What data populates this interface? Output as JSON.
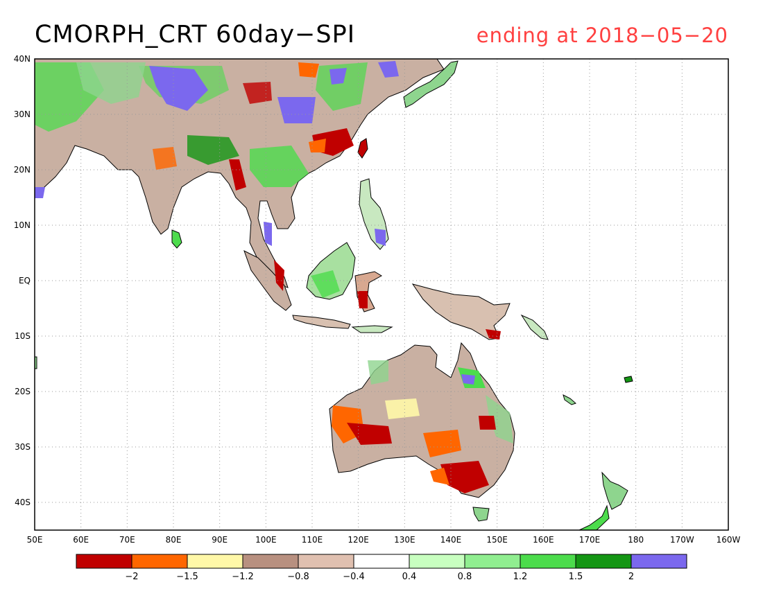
{
  "header": {
    "title": "CMORPH_CRT 60day−SPI",
    "subtitle": "ending at 2018−05−20",
    "subtitle_color": "#ff4040"
  },
  "map": {
    "lon_labels": [
      "50E",
      "60E",
      "70E",
      "80E",
      "90E",
      "100E",
      "110E",
      "120E",
      "130E",
      "140E",
      "150E",
      "160E",
      "170E",
      "180",
      "170W",
      "160W"
    ],
    "lat_labels": [
      "40N",
      "30N",
      "20N",
      "10N",
      "EQ",
      "10S",
      "20S",
      "30S",
      "40S"
    ]
  },
  "colorbar": {
    "colors": [
      "#c00000",
      "#ff6600",
      "#fff8a8",
      "#b89080",
      "#e0c0b0",
      "#ffffff",
      "#c8ffc0",
      "#90ee90",
      "#4cdc4c",
      "#149614",
      "#7b68ee"
    ],
    "labels": [
      "−2",
      "−1.5",
      "−1.2",
      "−0.8",
      "−0.4",
      "0.4",
      "0.8",
      "1.2",
      "1.5",
      "2"
    ]
  }
}
